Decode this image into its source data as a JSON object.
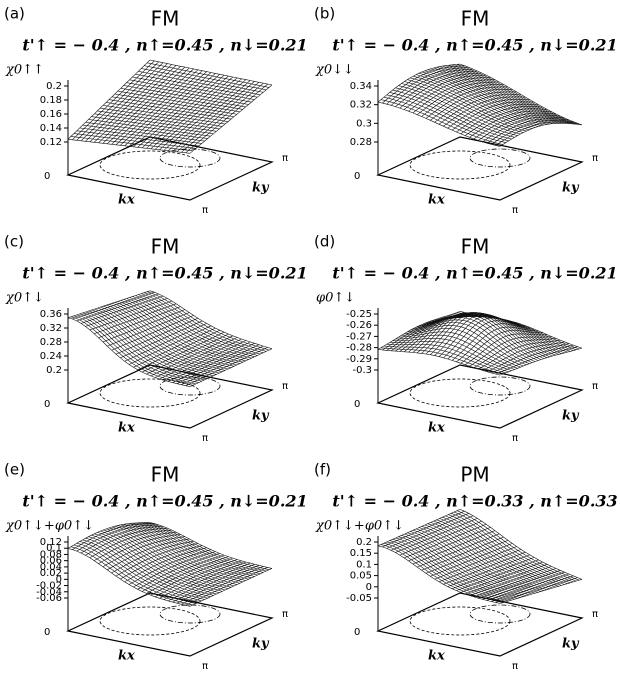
{
  "panels": [
    {
      "label": "(a)",
      "title": "FM",
      "subtitle": "t'↑ = − 0.4 , n↑=0.45 , n↓=0.21",
      "z_label": "χ0↑↑",
      "z_ticks": [
        0.2,
        0.18,
        0.16,
        0.14,
        0.12
      ],
      "origin": "0",
      "pi_x": "π",
      "pi_y": "π",
      "kx": "kx",
      "ky": "ky"
    },
    {
      "label": "(b)",
      "title": "FM",
      "subtitle": "t'↑ = − 0.4 , n↑=0.45 , n↓=0.21",
      "z_label": "χ0↓↓",
      "z_ticks": [
        0.34,
        0.32,
        0.3,
        0.28
      ],
      "origin": "0",
      "pi_x": "π",
      "pi_y": "π",
      "kx": "kx",
      "ky": "ky"
    },
    {
      "label": "(c)",
      "title": "FM",
      "subtitle": "t'↑ = − 0.4 , n↑=0.45 , n↓=0.21",
      "z_label": "χ0↑↓",
      "z_ticks": [
        0.36,
        0.32,
        0.28,
        0.24,
        0.2
      ],
      "origin": "0",
      "pi_x": "π",
      "pi_y": "π",
      "kx": "kx",
      "ky": "ky"
    },
    {
      "label": "(d)",
      "title": "FM",
      "subtitle": "t'↑ = − 0.4 , n↑=0.45 , n↓=0.21",
      "z_label": "φ0↑↓",
      "z_ticks": [
        -0.25,
        -0.26,
        -0.27,
        -0.28,
        -0.29,
        -0.3
      ],
      "origin": "0",
      "pi_x": "π",
      "pi_y": "π",
      "kx": "kx",
      "ky": "ky"
    },
    {
      "label": "(e)",
      "title": "FM",
      "subtitle": "t'↑ = − 0.4 , n↑=0.45 , n↓=0.21",
      "z_label": "χ0↑↓+φ0↑↓",
      "z_ticks": [
        0.12,
        0.1,
        0.08,
        0.06,
        0.04,
        0.02,
        0,
        -0.02,
        -0.04,
        -0.06
      ],
      "origin": "0",
      "pi_x": "π",
      "pi_y": "π",
      "kx": "kx",
      "ky": "ky"
    },
    {
      "label": "(f)",
      "title": "PM",
      "subtitle": "t'↑ = − 0.4 , n↑=0.33 , n↑=0.33",
      "z_label": "χ0↑↓+φ0↑↓",
      "z_ticks": [
        0.2,
        0.15,
        0.1,
        0.05,
        0,
        -0.05
      ],
      "origin": "0",
      "pi_x": "π",
      "pi_y": "π",
      "kx": "kx",
      "ky": "ky"
    }
  ]
}
